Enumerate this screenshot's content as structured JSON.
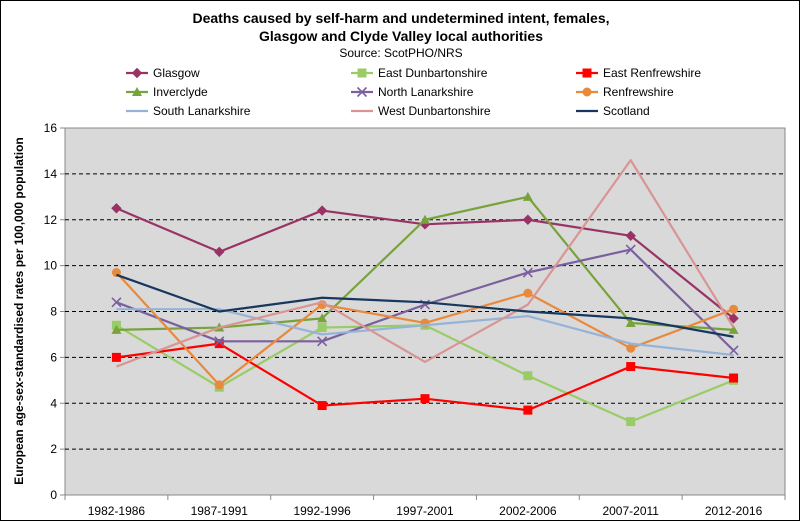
{
  "chart_data": {
    "type": "line",
    "title_lines": [
      "Deaths caused by self-harm and undetermined intent, females,",
      "Glasgow and Clyde Valley local authorities"
    ],
    "subtitle": "Source: ScotPHO/NRS",
    "xlabel": "",
    "ylabel": "European age-sex-standardised rates per 100,000 population",
    "ylim": [
      0,
      16
    ],
    "yticks": [
      0,
      2,
      4,
      6,
      8,
      10,
      12,
      14,
      16
    ],
    "grid": "horizontal dashed",
    "legend_position": "top",
    "plot_background": "#d9d9d9",
    "categories": [
      "1982-1986",
      "1987-1991",
      "1992-1996",
      "1997-2001",
      "2002-2006",
      "2007-2011",
      "2012-2016"
    ],
    "series": [
      {
        "name": "Glasgow",
        "color": "#993366",
        "marker": "diamond",
        "values": [
          12.5,
          10.6,
          12.4,
          11.8,
          12.0,
          11.3,
          7.7
        ]
      },
      {
        "name": "East Dunbartonshire",
        "color": "#99cc66",
        "marker": "square",
        "values": [
          7.4,
          4.7,
          7.3,
          7.4,
          5.2,
          3.2,
          5.0
        ]
      },
      {
        "name": "East Renfrewshire",
        "color": "#ff0000",
        "marker": "square",
        "values": [
          6.0,
          6.6,
          3.9,
          4.2,
          3.7,
          5.6,
          5.1
        ]
      },
      {
        "name": "Inverclyde",
        "color": "#77a33a",
        "marker": "triangle",
        "values": [
          7.2,
          7.3,
          7.7,
          12.0,
          13.0,
          7.5,
          7.2
        ]
      },
      {
        "name": "North Lanarkshire",
        "color": "#7b5f9e",
        "marker": "x",
        "values": [
          8.4,
          6.7,
          6.7,
          8.3,
          9.7,
          10.7,
          6.3
        ]
      },
      {
        "name": "Renfrewshire",
        "color": "#e8893c",
        "marker": "circle",
        "values": [
          9.7,
          4.8,
          8.3,
          7.5,
          8.8,
          6.4,
          8.1
        ]
      },
      {
        "name": "South Lanarkshire",
        "color": "#95b3d7",
        "marker": "none",
        "values": [
          8.1,
          8.1,
          7.0,
          7.4,
          7.8,
          6.6,
          6.1
        ]
      },
      {
        "name": "West Dunbartonshire",
        "color": "#d99594",
        "marker": "none",
        "values": [
          5.6,
          7.3,
          8.4,
          5.8,
          8.3,
          14.6,
          7.3
        ]
      },
      {
        "name": "Scotland",
        "color": "#17375e",
        "marker": "none",
        "values": [
          9.6,
          8.0,
          8.6,
          8.4,
          8.0,
          7.7,
          6.9
        ]
      }
    ]
  }
}
